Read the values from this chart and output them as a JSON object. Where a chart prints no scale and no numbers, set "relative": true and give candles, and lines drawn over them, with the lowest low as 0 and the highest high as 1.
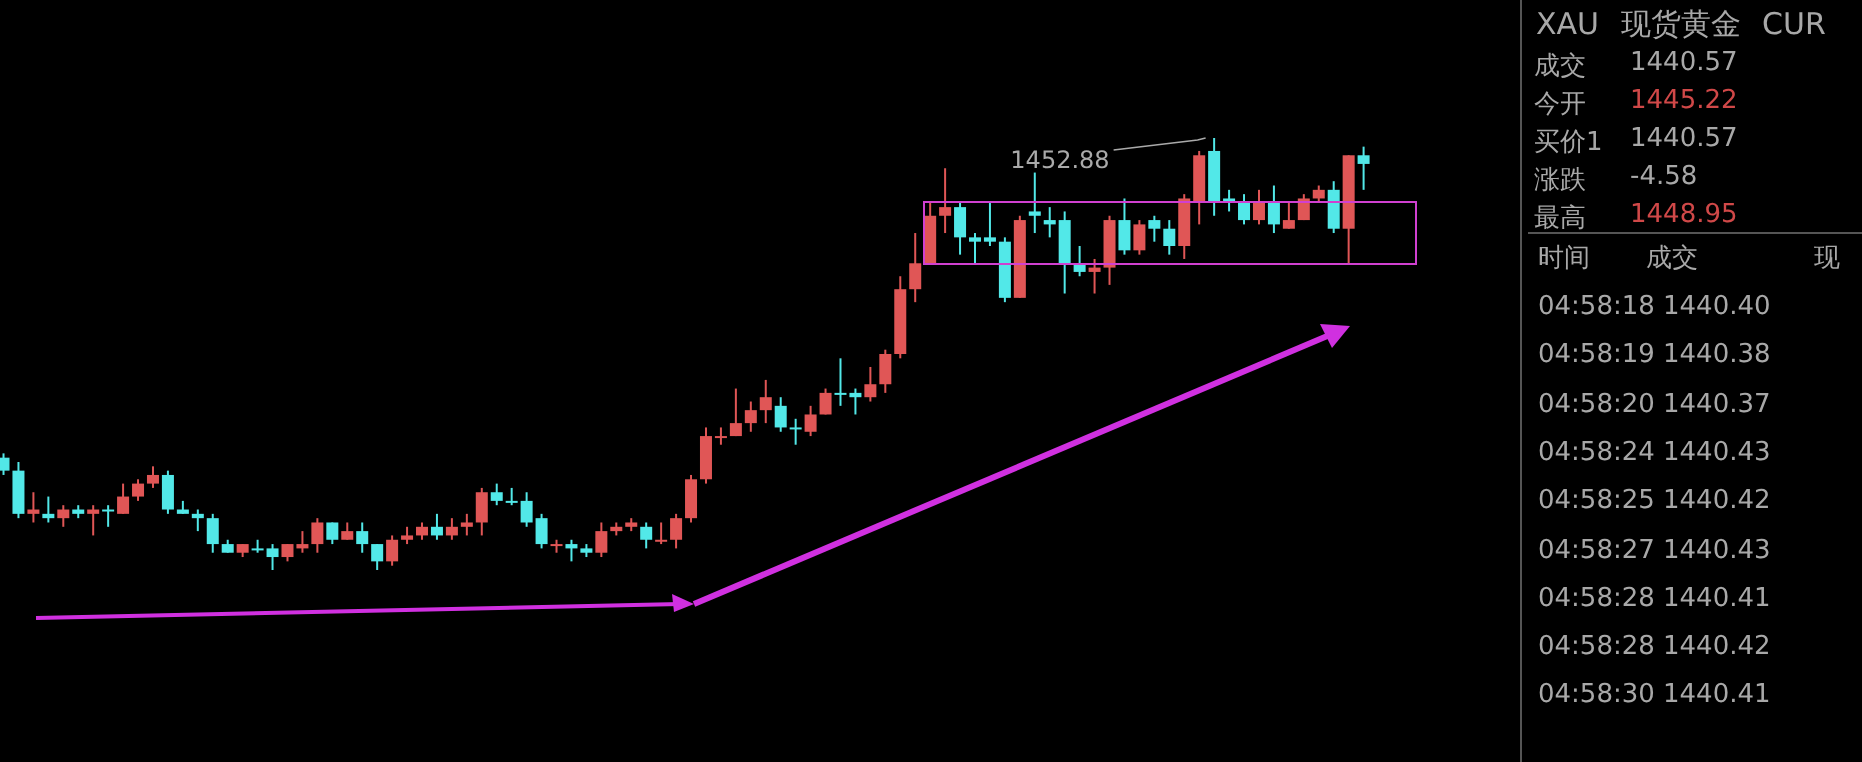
{
  "chart_data": [
    {
      "type": "candlestick",
      "relative": true,
      "categories": [
        null,
        null,
        null,
        null,
        null,
        null,
        null,
        null,
        null,
        null,
        null,
        null,
        null,
        null,
        null,
        null,
        null,
        null,
        null,
        null,
        null,
        null,
        null,
        null,
        null,
        null,
        null,
        null,
        null,
        null,
        null,
        null,
        null,
        null,
        null,
        null,
        null,
        null,
        null,
        null,
        null,
        null,
        null,
        null,
        null,
        null,
        null,
        null,
        null,
        null,
        null,
        null,
        null,
        null,
        null,
        null,
        null,
        null,
        null,
        null,
        null,
        null,
        null,
        null,
        null,
        null,
        null,
        null,
        null,
        null,
        null,
        null,
        null,
        null,
        null,
        null,
        null,
        null,
        null,
        null,
        null,
        null,
        null,
        null,
        null,
        null,
        null,
        null,
        null,
        null,
        null,
        null
      ],
      "ohlc": [
        [
          0.26,
          0.27,
          0.22,
          0.23
        ],
        [
          0.23,
          0.25,
          0.12,
          0.13
        ],
        [
          0.13,
          0.18,
          0.11,
          0.14
        ],
        [
          0.13,
          0.17,
          0.11,
          0.12
        ],
        [
          0.12,
          0.15,
          0.1,
          0.14
        ],
        [
          0.14,
          0.15,
          0.12,
          0.13
        ],
        [
          0.13,
          0.15,
          0.08,
          0.14
        ],
        [
          0.14,
          0.15,
          0.1,
          0.14
        ],
        [
          0.13,
          0.2,
          0.13,
          0.17
        ],
        [
          0.17,
          0.21,
          0.16,
          0.2
        ],
        [
          0.2,
          0.24,
          0.19,
          0.22
        ],
        [
          0.22,
          0.23,
          0.13,
          0.14
        ],
        [
          0.14,
          0.16,
          0.13,
          0.13
        ],
        [
          0.13,
          0.14,
          0.09,
          0.12
        ],
        [
          0.12,
          0.13,
          0.04,
          0.06
        ],
        [
          0.06,
          0.07,
          0.04,
          0.04
        ],
        [
          0.04,
          0.06,
          0.03,
          0.06
        ],
        [
          0.05,
          0.07,
          0.04,
          0.05
        ],
        [
          0.05,
          0.06,
          0.0,
          0.03
        ],
        [
          0.03,
          0.06,
          0.02,
          0.06
        ],
        [
          0.05,
          0.09,
          0.04,
          0.06
        ],
        [
          0.06,
          0.12,
          0.04,
          0.11
        ],
        [
          0.11,
          0.11,
          0.06,
          0.07
        ],
        [
          0.07,
          0.11,
          0.07,
          0.09
        ],
        [
          0.09,
          0.11,
          0.04,
          0.06
        ],
        [
          0.06,
          0.06,
          0.0,
          0.02
        ],
        [
          0.02,
          0.08,
          0.01,
          0.07
        ],
        [
          0.07,
          0.1,
          0.06,
          0.08
        ],
        [
          0.08,
          0.11,
          0.07,
          0.1
        ],
        [
          0.1,
          0.13,
          0.07,
          0.08
        ],
        [
          0.08,
          0.12,
          0.07,
          0.1
        ],
        [
          0.1,
          0.13,
          0.08,
          0.11
        ],
        [
          0.11,
          0.19,
          0.08,
          0.18
        ],
        [
          0.18,
          0.2,
          0.15,
          0.16
        ],
        [
          0.16,
          0.19,
          0.15,
          0.16
        ],
        [
          0.16,
          0.18,
          0.1,
          0.11
        ],
        [
          0.12,
          0.13,
          0.05,
          0.06
        ],
        [
          0.06,
          0.07,
          0.04,
          0.06
        ],
        [
          0.06,
          0.07,
          0.02,
          0.05
        ],
        [
          0.05,
          0.06,
          0.03,
          0.04
        ],
        [
          0.04,
          0.11,
          0.03,
          0.09
        ],
        [
          0.09,
          0.11,
          0.08,
          0.1
        ],
        [
          0.1,
          0.12,
          0.09,
          0.11
        ],
        [
          0.1,
          0.11,
          0.05,
          0.07
        ],
        [
          0.07,
          0.11,
          0.06,
          0.07
        ],
        [
          0.07,
          0.13,
          0.05,
          0.12
        ],
        [
          0.12,
          0.22,
          0.11,
          0.21
        ],
        [
          0.21,
          0.33,
          0.2,
          0.31
        ],
        [
          0.31,
          0.33,
          0.29,
          0.31
        ],
        [
          0.31,
          0.42,
          0.31,
          0.34
        ],
        [
          0.34,
          0.39,
          0.32,
          0.37
        ],
        [
          0.37,
          0.44,
          0.34,
          0.4
        ],
        [
          0.38,
          0.4,
          0.32,
          0.33
        ],
        [
          0.33,
          0.35,
          0.29,
          0.33
        ],
        [
          0.32,
          0.38,
          0.31,
          0.36
        ],
        [
          0.36,
          0.42,
          0.36,
          0.41
        ],
        [
          0.41,
          0.49,
          0.38,
          0.41
        ],
        [
          0.41,
          0.42,
          0.36,
          0.4
        ],
        [
          0.4,
          0.47,
          0.39,
          0.43
        ],
        [
          0.43,
          0.51,
          0.41,
          0.5
        ],
        [
          0.5,
          0.68,
          0.49,
          0.65
        ],
        [
          0.65,
          0.78,
          0.62,
          0.71
        ],
        [
          0.71,
          0.85,
          0.71,
          0.82
        ],
        [
          0.82,
          0.93,
          0.78,
          0.84
        ],
        [
          0.84,
          0.85,
          0.73,
          0.77
        ],
        [
          0.77,
          0.78,
          0.71,
          0.76
        ],
        [
          0.77,
          0.85,
          0.75,
          0.76
        ],
        [
          0.76,
          0.77,
          0.62,
          0.63
        ],
        [
          0.63,
          0.82,
          0.63,
          0.81
        ],
        [
          0.83,
          0.92,
          0.78,
          0.82
        ],
        [
          0.81,
          0.84,
          0.77,
          0.8
        ],
        [
          0.81,
          0.83,
          0.64,
          0.71
        ],
        [
          0.71,
          0.75,
          0.68,
          0.69
        ],
        [
          0.69,
          0.72,
          0.64,
          0.7
        ],
        [
          0.7,
          0.82,
          0.66,
          0.81
        ],
        [
          0.81,
          0.86,
          0.73,
          0.74
        ],
        [
          0.74,
          0.81,
          0.73,
          0.8
        ],
        [
          0.81,
          0.82,
          0.76,
          0.79
        ],
        [
          0.79,
          0.81,
          0.73,
          0.75
        ],
        [
          0.75,
          0.87,
          0.72,
          0.86
        ],
        [
          0.85,
          0.97,
          0.8,
          0.96
        ],
        [
          0.97,
          1,
          0.82,
          0.85
        ],
        [
          0.86,
          0.88,
          0.83,
          0.85
        ],
        [
          0.85,
          0.87,
          0.8,
          0.81
        ],
        [
          0.81,
          0.88,
          0.8,
          0.85
        ],
        [
          0.85,
          0.89,
          0.78,
          0.8
        ],
        [
          0.79,
          0.85,
          0.79,
          0.81
        ],
        [
          0.81,
          0.87,
          0.81,
          0.86
        ],
        [
          0.86,
          0.89,
          0.85,
          0.88
        ],
        [
          0.88,
          0.9,
          0.78,
          0.79
        ],
        [
          0.79,
          0.96,
          0.71,
          0.96
        ],
        [
          0.96,
          0.98,
          0.88,
          0.94
        ]
      ],
      "colors": [
        "#52e8e8",
        "#52e8e8",
        "#e05656",
        "#52e8e8",
        "#e05656",
        "#52e8e8",
        "#e05656",
        "#52e8e8",
        "#e05656",
        "#e05656",
        "#e05656",
        "#52e8e8",
        "#52e8e8",
        "#52e8e8",
        "#52e8e8",
        "#52e8e8",
        "#e05656",
        "#52e8e8",
        "#52e8e8",
        "#e05656",
        "#e05656",
        "#e05656",
        "#52e8e8",
        "#e05656",
        "#52e8e8",
        "#52e8e8",
        "#e05656",
        "#e05656",
        "#e05656",
        "#52e8e8",
        "#e05656",
        "#e05656",
        "#e05656",
        "#52e8e8",
        "#52e8e8",
        "#52e8e8",
        "#52e8e8",
        "#e05656",
        "#52e8e8",
        "#52e8e8",
        "#e05656",
        "#e05656",
        "#e05656",
        "#52e8e8",
        "#e05656",
        "#e05656",
        "#e05656",
        "#e05656",
        "#e05656",
        "#e05656",
        "#e05656",
        "#e05656",
        "#52e8e8",
        "#52e8e8",
        "#e05656",
        "#e05656",
        "#52e8e8",
        "#52e8e8",
        "#e05656",
        "#e05656",
        "#e05656",
        "#e05656",
        "#e05656",
        "#e05656",
        "#52e8e8",
        "#52e8e8",
        "#52e8e8",
        "#52e8e8",
        "#e05656",
        "#52e8e8",
        "#52e8e8",
        "#52e8e8",
        "#52e8e8",
        "#e05656",
        "#e05656",
        "#52e8e8",
        "#e05656",
        "#52e8e8",
        "#52e8e8",
        "#e05656",
        "#e05656",
        "#52e8e8",
        "#52e8e8",
        "#52e8e8",
        "#e05656",
        "#52e8e8",
        "#e05656",
        "#e05656",
        "#e05656",
        "#52e8e8",
        "#e05656",
        "#52e8e8"
      ],
      "annotations": [
        "1452.88"
      ]
    },
    {
      "type": "other",
      "title": "XAU 现货黄金 CUR",
      "annotations": [
        "成交 1440.57",
        "今开 1445.22",
        "买价1 1440.57",
        "涨跌 -4.58",
        "最高 1448.95",
        "时间 成交 现",
        "04:58:18 1440.40",
        "04:58:19 1440.38",
        "04:58:20 1440.37",
        "04:58:24 1440.43",
        "04:58:25 1440.42",
        "04:58:27 1440.43",
        "04:58:28 1440.41",
        "04:58:28 1440.42",
        "04:58:30 1440.41"
      ]
    }
  ]
}
